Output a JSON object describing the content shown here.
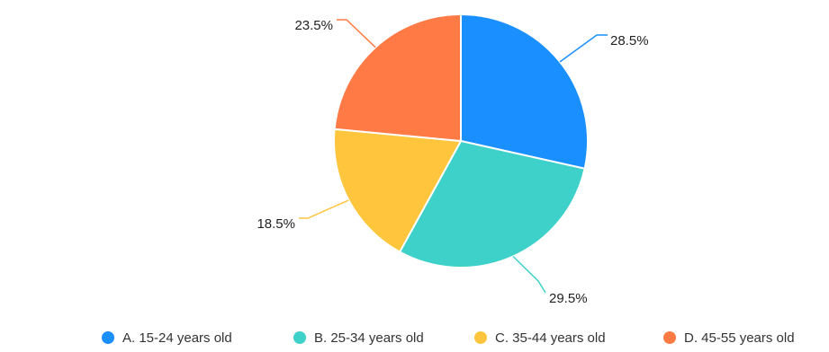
{
  "chart_data": {
    "type": "pie",
    "series": [
      {
        "name": "",
        "slices": [
          {
            "label": "A. 15-24 years old",
            "value": 28.5,
            "value_label": "28.5%",
            "color": "#1A8FFF"
          },
          {
            "label": "B. 25-34 years old",
            "value": 29.5,
            "value_label": "29.5%",
            "color": "#3DD1C9"
          },
          {
            "label": "C. 35-44 years old",
            "value": 18.5,
            "value_label": "18.5%",
            "color": "#FFC53D"
          },
          {
            "label": "D. 45-55 years old",
            "value": 23.5,
            "value_label": "23.5%",
            "color": "#FF7A45"
          }
        ]
      }
    ],
    "start_angle": "12 o'clock",
    "direction": "clockwise",
    "legend_position": "bottom"
  }
}
